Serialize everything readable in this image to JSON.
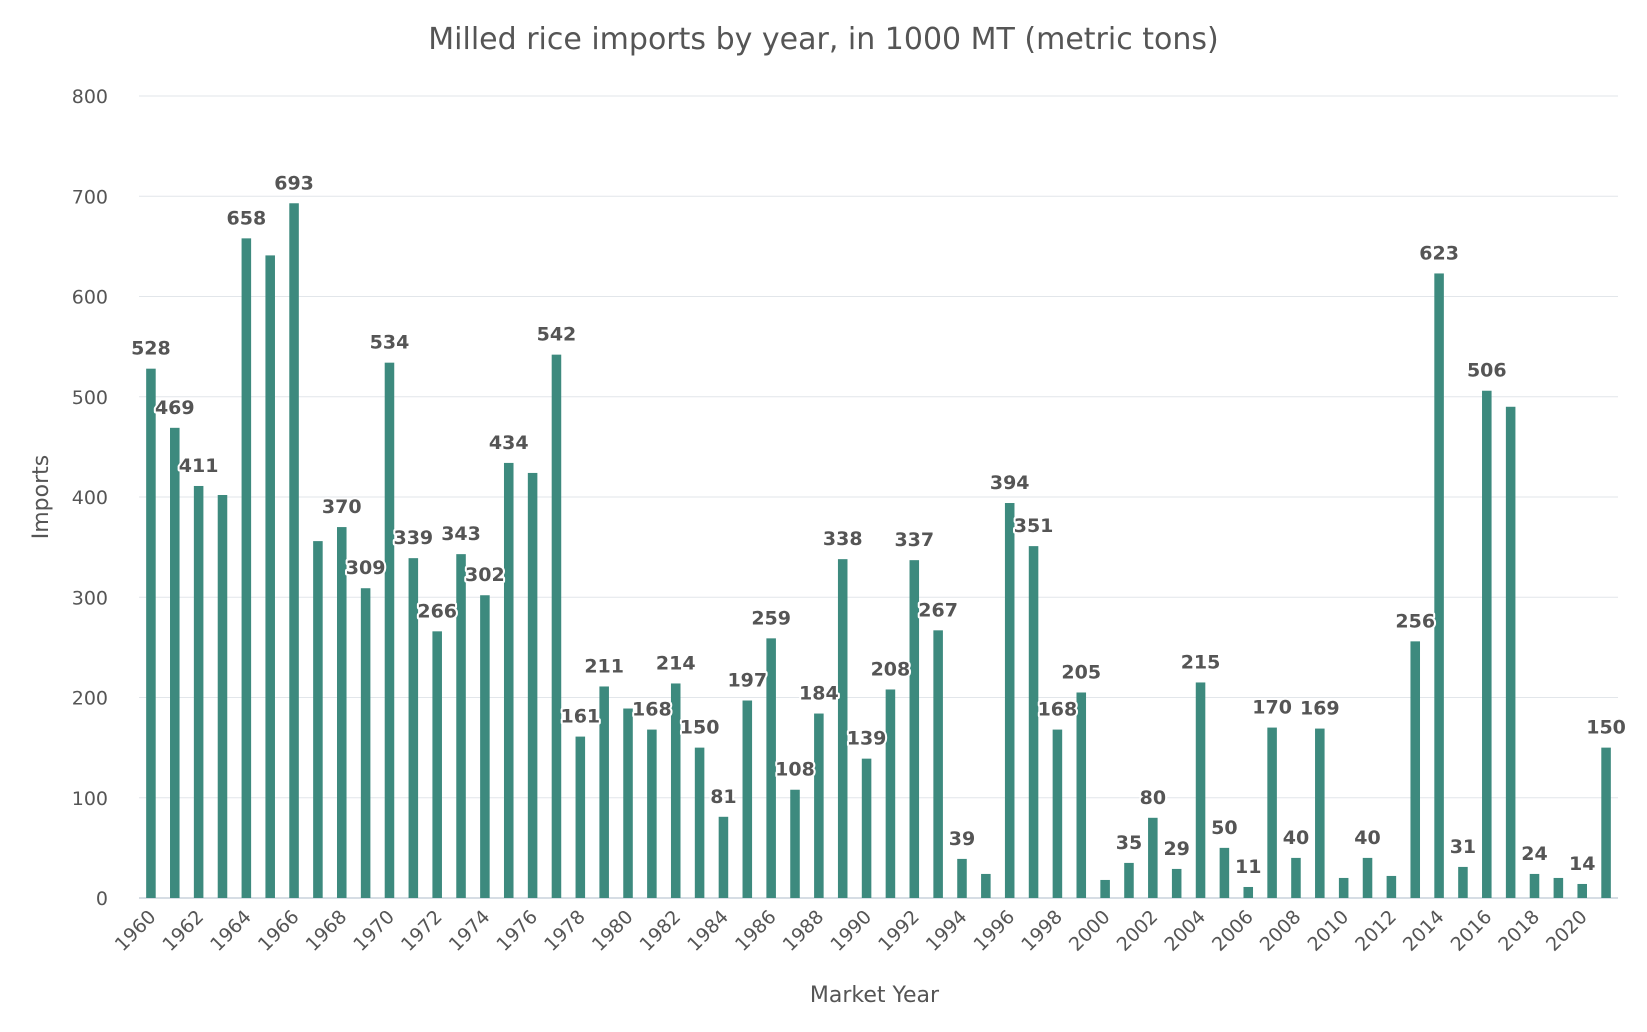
{
  "chart_data": {
    "type": "bar",
    "title": "Milled rice imports by year, in 1000 MT (metric tons)",
    "xlabel": "Market Year",
    "ylabel": "Imports",
    "ylim": [
      0,
      800
    ],
    "yticks": [
      0,
      100,
      200,
      300,
      400,
      500,
      600,
      700,
      800
    ],
    "grid": true,
    "legend": "none",
    "bar_color": "#3d8a7e",
    "categories": [
      1960,
      1961,
      1962,
      1963,
      1964,
      1965,
      1966,
      1967,
      1968,
      1969,
      1970,
      1971,
      1972,
      1973,
      1974,
      1975,
      1976,
      1977,
      1978,
      1979,
      1980,
      1981,
      1982,
      1983,
      1984,
      1985,
      1986,
      1987,
      1988,
      1989,
      1990,
      1991,
      1992,
      1993,
      1994,
      1995,
      1996,
      1997,
      1998,
      1999,
      2000,
      2001,
      2002,
      2003,
      2004,
      2005,
      2006,
      2007,
      2008,
      2009,
      2010,
      2011,
      2012,
      2013,
      2014,
      2015,
      2016,
      2017,
      2018,
      2019,
      2020,
      2021
    ],
    "xtick_labels": [
      "1960",
      "1962",
      "1964",
      "1966",
      "1968",
      "1970",
      "1972",
      "1974",
      "1976",
      "1978",
      "1980",
      "1982",
      "1984",
      "1986",
      "1988",
      "1990",
      "1992",
      "1994",
      "1996",
      "1998",
      "2000",
      "2002",
      "2004",
      "2006",
      "2008",
      "2010",
      "2012",
      "2014",
      "2016",
      "2018",
      "2020"
    ],
    "values": [
      528,
      469,
      411,
      402,
      658,
      641,
      693,
      356,
      370,
      309,
      534,
      339,
      266,
      343,
      302,
      434,
      424,
      542,
      161,
      211,
      189,
      168,
      214,
      150,
      81,
      197,
      259,
      108,
      184,
      338,
      139,
      208,
      337,
      267,
      39,
      24,
      394,
      351,
      168,
      205,
      18,
      35,
      80,
      29,
      215,
      50,
      11,
      170,
      40,
      169,
      20,
      40,
      22,
      256,
      623,
      31,
      506,
      490,
      24,
      20,
      14,
      150
    ],
    "data_labels": [
      528,
      469,
      411,
      null,
      658,
      null,
      693,
      null,
      370,
      309,
      534,
      339,
      266,
      343,
      302,
      434,
      null,
      542,
      161,
      211,
      null,
      168,
      214,
      150,
      81,
      197,
      259,
      108,
      184,
      338,
      139,
      208,
      337,
      267,
      39,
      null,
      394,
      351,
      168,
      205,
      null,
      35,
      80,
      29,
      215,
      50,
      11,
      170,
      40,
      169,
      null,
      40,
      null,
      256,
      623,
      31,
      506,
      null,
      24,
      null,
      14,
      150
    ]
  }
}
